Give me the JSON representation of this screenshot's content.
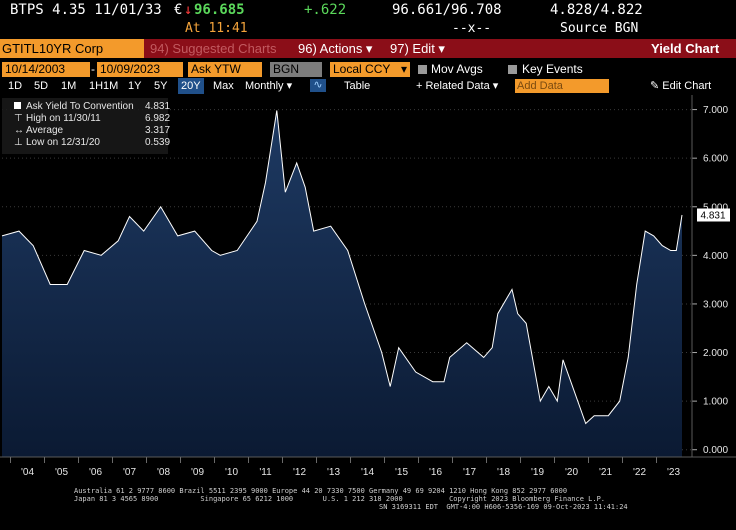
{
  "quote": {
    "security": "BTPS 4.35 11/01/33",
    "currency_symbol": "€",
    "arrow": "↓",
    "price": "96.685",
    "change": "+.622",
    "bid_ask": "96.661/96.708",
    "yields": "4.828/4.822",
    "time": "At 11:41",
    "size": "--x--",
    "source": "Source BGN"
  },
  "command_bar": {
    "ticker": "GTITL10YR Corp",
    "suggested": "94) Suggested Charts",
    "actions": "96) Actions ▾",
    "edit": "97) Edit ▾",
    "title": "Yield Chart"
  },
  "params": {
    "start_date": "10/14/2003",
    "end_date": "10/09/2023",
    "field": "Ask YTW",
    "source": "BGN",
    "currency": "Local CCY",
    "mov_avgs": "Mov Avgs",
    "key_events": "Key Events"
  },
  "range_bar": {
    "buttons": [
      "1D",
      "5D",
      "1M",
      "1H1M",
      "1Y",
      "5Y",
      "20Y",
      "Max"
    ],
    "selected": "20Y",
    "frequency": "Monthly ▾",
    "table": "Table",
    "related": "+ Related Data ▾",
    "add_data": "Add Data",
    "edit_chart": "✎ Edit Chart"
  },
  "legend": {
    "series": "Ask Yield To Convention",
    "series_value": "4.831",
    "high_label": "High on 11/30/11",
    "high_value": "6.982",
    "avg_label": "Average",
    "avg_value": "3.317",
    "low_label": "Low on 12/31/20",
    "low_value": "0.539"
  },
  "colors": {
    "line": "#ffffff",
    "area_top": "#1e3a63",
    "area_bottom": "#0b1a33",
    "ticker_bg": "#f39a2b",
    "bar_bg": "#8b0e18"
  },
  "chart_data": {
    "type": "area",
    "series": [
      {
        "name": "Ask Yield To Convention",
        "x": [
          "Oct 2003",
          "Apr 2004",
          "Sep 2004",
          "Mar 2005",
          "Sep 2005",
          "Mar 2006",
          "Sep 2006",
          "Mar 2007",
          "Jul 2007",
          "Dec 2007",
          "Jun 2008",
          "Dec 2008",
          "Jun 2009",
          "Dec 2009",
          "Mar 2010",
          "Sep 2010",
          "Apr 2011",
          "Jul 2011",
          "Nov 2011",
          "Feb 2012",
          "Jun 2012",
          "Sep 2012",
          "Dec 2012",
          "Jun 2013",
          "Dec 2013",
          "Jun 2014",
          "Dec 2014",
          "Mar 2015",
          "Jun 2015",
          "Dec 2015",
          "Jun 2016",
          "Oct 2016",
          "Dec 2016",
          "Jun 2017",
          "Dec 2017",
          "Mar 2018",
          "May 2018",
          "Oct 2018",
          "Dec 2018",
          "Mar 2019",
          "Aug 2019",
          "Nov 2019",
          "Feb 2020",
          "Apr 2020",
          "Aug 2020",
          "Dec 2020",
          "Mar 2021",
          "Aug 2021",
          "Dec 2021",
          "Mar 2022",
          "Jun 2022",
          "Sep 2022",
          "Dec 2022",
          "Mar 2023",
          "Jun 2023",
          "Aug 2023",
          "Oct 2023"
        ],
        "values": [
          4.4,
          4.5,
          4.2,
          3.4,
          3.4,
          4.1,
          4.0,
          4.3,
          4.8,
          4.5,
          5.0,
          4.4,
          4.5,
          4.1,
          4.0,
          4.1,
          4.7,
          5.5,
          6.98,
          5.3,
          5.9,
          5.4,
          4.5,
          4.6,
          4.1,
          3.0,
          2.0,
          1.3,
          2.1,
          1.6,
          1.4,
          1.4,
          1.9,
          2.2,
          1.9,
          2.1,
          2.8,
          3.3,
          2.8,
          2.6,
          1.0,
          1.3,
          1.0,
          1.85,
          1.2,
          0.54,
          0.7,
          0.7,
          1.0,
          1.9,
          3.4,
          4.5,
          4.4,
          4.2,
          4.1,
          4.1,
          4.83
        ]
      }
    ],
    "xlabels": [
      "'04",
      "'05",
      "'06",
      "'07",
      "'08",
      "'09",
      "'10",
      "'11",
      "'12",
      "'13",
      "'14",
      "'15",
      "'16",
      "'17",
      "'18",
      "'19",
      "'20",
      "'21",
      "'22",
      "'23"
    ],
    "yticks": [
      0,
      1,
      2,
      3,
      4,
      5,
      6,
      7
    ],
    "ylim": [
      -0.15,
      7.3
    ],
    "last_value": "4.831",
    "high": 6.982,
    "average": 3.317,
    "low": 0.539
  },
  "footer": {
    "line1": "Australia 61 2 9777 8600 Brazil 5511 2395 9000 Europe 44 20 7330 7500 Germany 49 69 9204 1210 Hong Kong 852 2977 6000",
    "line2": "Japan 81 3 4565 8900          Singapore 65 6212 1000       U.S. 1 212 318 2000           Copyright 2023 Bloomberg Finance L.P.",
    "line3": "SN 3169311 EDT  GMT-4:00 H606-5356-169 09-Oct-2023 11:41:24"
  }
}
